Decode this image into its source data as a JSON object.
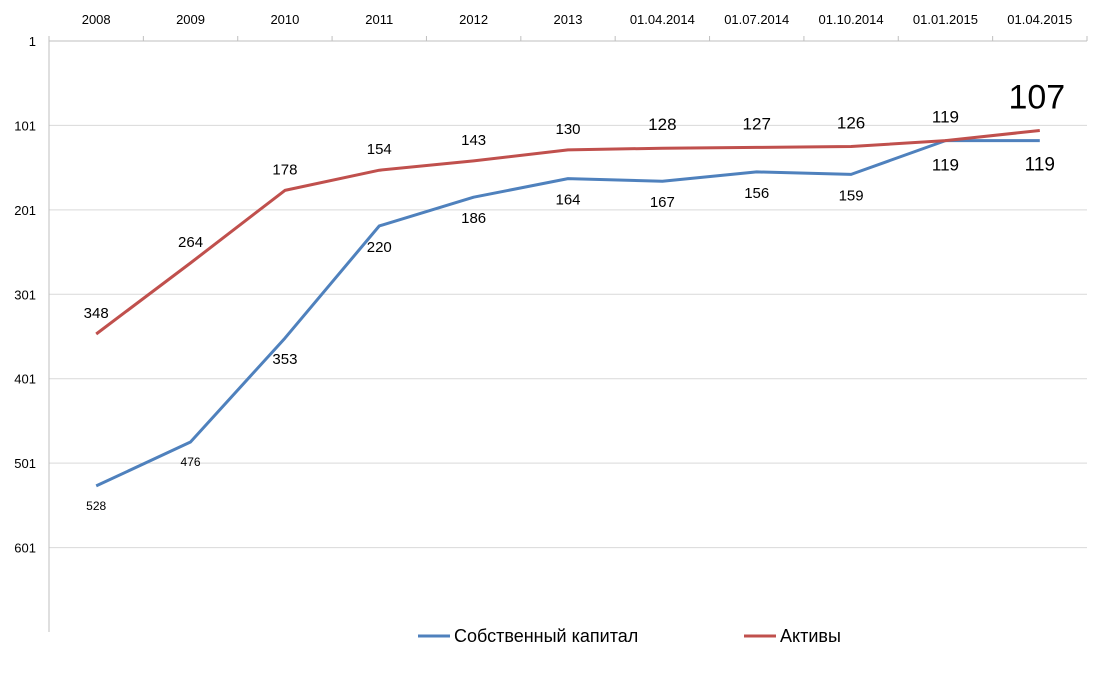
{
  "chart_data": {
    "type": "line",
    "title": "",
    "xlabel": "",
    "ylabel": "",
    "y_axis_reversed": true,
    "x_axis_position": "top",
    "ylim": [
      1,
      701
    ],
    "y_ticks": [
      "1",
      "101",
      "201",
      "301",
      "401",
      "501",
      "601"
    ],
    "y_tick_values": [
      1,
      101,
      201,
      301,
      401,
      501,
      601
    ],
    "grid": true,
    "legend_position": "bottom",
    "categories": [
      "2008",
      "2009",
      "2010",
      "2011",
      "2012",
      "2013",
      "01.04.2014",
      "01.07.2014",
      "01.10.2014",
      "01.01.2015",
      "01.04.2015"
    ],
    "series": [
      {
        "name": "Собственный  капитал",
        "color": "#4f81bd",
        "values": [
          528,
          476,
          353,
          220,
          186,
          164,
          167,
          156,
          159,
          119,
          119
        ],
        "labels": [
          "528",
          "476",
          "353",
          "220",
          "186",
          "164",
          "167",
          "156",
          "159",
          "119",
          "119"
        ]
      },
      {
        "name": "Активы",
        "color": "#c0504d",
        "values": [
          348,
          264,
          178,
          154,
          143,
          130,
          128,
          127,
          126,
          119,
          107
        ],
        "labels": [
          "348",
          "264",
          "178",
          "154",
          "143",
          "130",
          "128",
          "127",
          "126",
          "119",
          "107"
        ]
      }
    ]
  }
}
